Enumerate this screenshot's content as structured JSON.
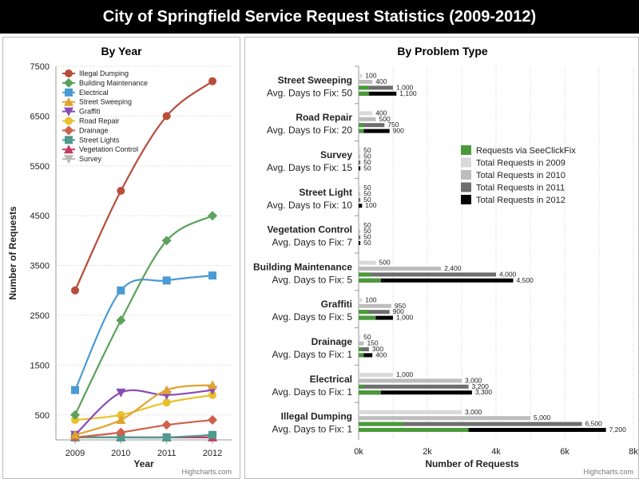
{
  "page_title": "City of Springfield Service Request Statistics (2009-2012)",
  "chart_data": [
    {
      "type": "line",
      "title": "By Year",
      "xlabel": "Year",
      "ylabel": "Number of Requests",
      "x": [
        "2009",
        "2010",
        "2011",
        "2012"
      ],
      "yticks": [
        "500",
        "1500",
        "2500",
        "3500",
        "4500",
        "5500",
        "6500",
        "7500"
      ],
      "ylim": [
        0,
        7500
      ],
      "legend_position": "top-left",
      "credit": "Highcharts.com",
      "series": [
        {
          "name": "Illegal Dumping",
          "color": "#b84d3a",
          "marker": "circle",
          "values": [
            3000,
            5000,
            6500,
            7200
          ]
        },
        {
          "name": "Building Maintenance",
          "color": "#5ca15c",
          "marker": "diamond",
          "values": [
            500,
            2400,
            4000,
            4500
          ]
        },
        {
          "name": "Electrical",
          "color": "#4a9ad4",
          "marker": "square",
          "values": [
            1000,
            3000,
            3200,
            3300
          ]
        },
        {
          "name": "Street Sweeping",
          "color": "#e0a330",
          "marker": "triangle",
          "values": [
            100,
            400,
            1000,
            1100
          ]
        },
        {
          "name": "Graffiti",
          "color": "#8a4bb5",
          "marker": "triangle-down",
          "values": [
            100,
            950,
            900,
            1000
          ]
        },
        {
          "name": "Road Repair",
          "color": "#e8c22c",
          "marker": "circle",
          "values": [
            400,
            500,
            750,
            900
          ]
        },
        {
          "name": "Drainage",
          "color": "#d0604a",
          "marker": "diamond",
          "values": [
            50,
            150,
            300,
            400
          ]
        },
        {
          "name": "Street Lights",
          "color": "#4e9b8f",
          "marker": "square",
          "values": [
            50,
            50,
            50,
            100
          ]
        },
        {
          "name": "Vegetation Control",
          "color": "#c23c64",
          "marker": "triangle",
          "values": [
            50,
            50,
            50,
            50
          ]
        },
        {
          "name": "Survey",
          "color": "#bbbbbb",
          "marker": "triangle-down",
          "values": [
            50,
            50,
            50,
            50
          ]
        }
      ]
    },
    {
      "type": "bar",
      "title": "By Problem Type",
      "xlabel": "Number of Requests",
      "xticks": [
        "0k",
        "2k",
        "4k",
        "6k",
        "8k"
      ],
      "xlim": [
        0,
        8000
      ],
      "legend_position": "right",
      "credit": "Highcharts.com",
      "categories": [
        {
          "name": "Street Sweeping",
          "avg": "Avg. Days to Fix: 50"
        },
        {
          "name": "Road Repair",
          "avg": "Avg. Days to Fix: 20"
        },
        {
          "name": "Survey",
          "avg": "Avg. Days to Fix: 15"
        },
        {
          "name": "Street Light",
          "avg": "Avg. Days to Fix: 10"
        },
        {
          "name": "Vegetation Control",
          "avg": "Avg. Days to Fix: 7"
        },
        {
          "name": "Building Maintenance",
          "avg": "Avg. Days to Fix: 5"
        },
        {
          "name": "Graffiti",
          "avg": "Avg. Days to Fix: 5"
        },
        {
          "name": "Drainage",
          "avg": "Avg. Days to Fix: 1"
        },
        {
          "name": "Electrical",
          "avg": "Avg. Days to Fix: 1"
        },
        {
          "name": "Illegal Dumping",
          "avg": "Avg. Days to Fix: 1"
        }
      ],
      "series": [
        {
          "name": "Total Requests in 2009",
          "color": "#d9d9d9",
          "values": [
            100,
            400,
            50,
            50,
            50,
            500,
            100,
            50,
            1000,
            3000
          ],
          "labels": [
            "100",
            "400",
            "50",
            "50",
            "50",
            "500",
            "100",
            "50",
            "1,000",
            "3,000"
          ]
        },
        {
          "name": "Total Requests in 2010",
          "color": "#bdbdbd",
          "values": [
            400,
            500,
            50,
            50,
            50,
            2400,
            950,
            150,
            3000,
            5000
          ],
          "labels": [
            "400",
            "500",
            "50",
            "50",
            "50",
            "2,400",
            "950",
            "150",
            "3,000",
            "5,000"
          ]
        },
        {
          "name": "Total Requests in 2011",
          "color": "#6e6e6e",
          "values": [
            1000,
            750,
            50,
            50,
            50,
            4000,
            900,
            300,
            3200,
            6500
          ],
          "labels": [
            "1,000",
            "750",
            "50",
            "50",
            "50",
            "4,000",
            "900",
            "300",
            "3,200",
            "6,500"
          ]
        },
        {
          "name": "Total Requests in 2012",
          "color": "#000000",
          "values": [
            1100,
            900,
            50,
            100,
            50,
            4500,
            1000,
            400,
            3300,
            7200
          ],
          "labels": [
            "1,100",
            "900",
            "50",
            "100",
            "50",
            "4,500",
            "1,000",
            "400",
            "3,300",
            "7,200"
          ]
        }
      ],
      "seeclickfix": {
        "name": "Requests via SeeClickFix",
        "color": "#4a9a3a",
        "pairs": [
          [
            300,
            300
          ],
          [
            150,
            150
          ],
          [
            0,
            0
          ],
          [
            0,
            0
          ],
          [
            0,
            0
          ],
          [
            350,
            650
          ],
          [
            300,
            500
          ],
          [
            100,
            150
          ],
          [
            150,
            650
          ],
          [
            1300,
            3200
          ]
        ]
      }
    }
  ]
}
